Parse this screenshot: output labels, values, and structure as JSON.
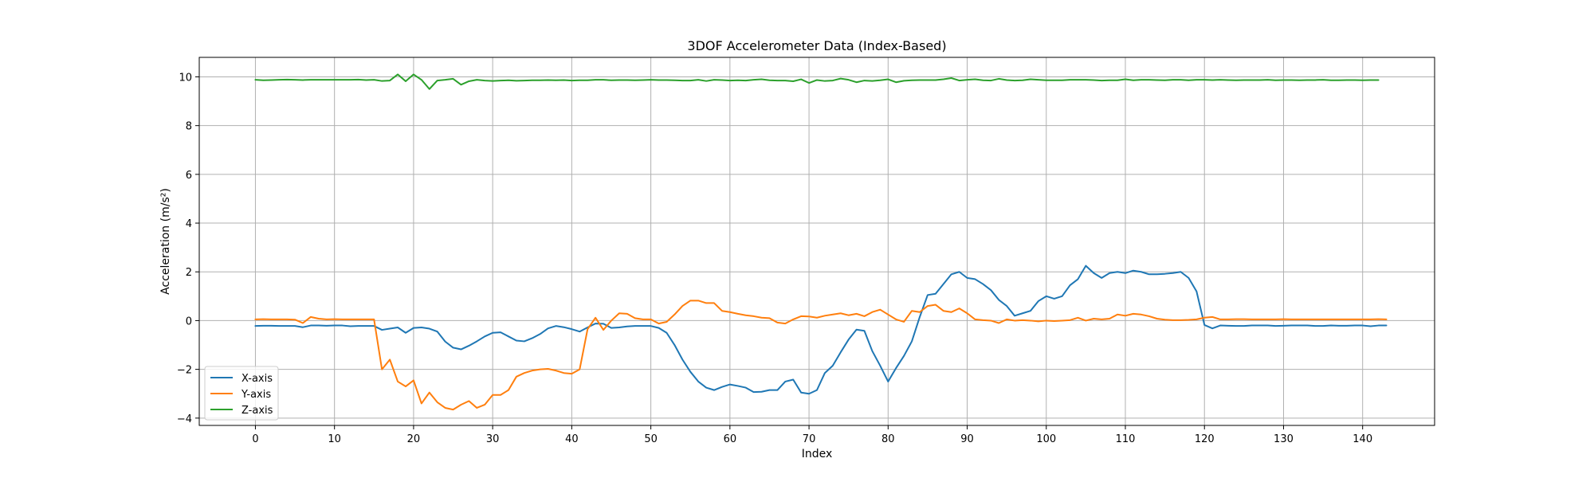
{
  "chart_data": {
    "type": "line",
    "title": "3DOF Accelerometer Data (Index-Based)",
    "xlabel": "Index",
    "ylabel": "Acceleration (m/s²)",
    "xlim": [
      -7.1,
      149.1
    ],
    "ylim": [
      -4.3,
      10.8
    ],
    "x_ticks": [
      0,
      10,
      20,
      30,
      40,
      50,
      60,
      70,
      80,
      90,
      100,
      110,
      120,
      130,
      140
    ],
    "y_ticks": [
      -4,
      -2,
      0,
      2,
      4,
      6,
      8,
      10
    ],
    "grid": true,
    "legend_position": "lower-left",
    "series": [
      {
        "name": "X-axis",
        "color": "#1f77b4",
        "values": [
          -0.22,
          -0.21,
          -0.21,
          -0.22,
          -0.22,
          -0.22,
          -0.27,
          -0.2,
          -0.2,
          -0.21,
          -0.2,
          -0.2,
          -0.23,
          -0.22,
          -0.22,
          -0.22,
          -0.38,
          -0.33,
          -0.28,
          -0.5,
          -0.3,
          -0.28,
          -0.33,
          -0.45,
          -0.86,
          -1.11,
          -1.18,
          -1.03,
          -0.85,
          -0.65,
          -0.5,
          -0.48,
          -0.65,
          -0.82,
          -0.85,
          -0.72,
          -0.55,
          -0.32,
          -0.22,
          -0.27,
          -0.35,
          -0.45,
          -0.28,
          -0.12,
          -0.13,
          -0.3,
          -0.28,
          -0.24,
          -0.22,
          -0.22,
          -0.22,
          -0.3,
          -0.5,
          -1.0,
          -1.6,
          -2.1,
          -2.5,
          -2.75,
          -2.85,
          -2.72,
          -2.62,
          -2.68,
          -2.75,
          -2.93,
          -2.92,
          -2.85,
          -2.85,
          -2.5,
          -2.42,
          -2.95,
          -3.0,
          -2.85,
          -2.15,
          -1.85,
          -1.3,
          -0.78,
          -0.37,
          -0.42,
          -1.25,
          -1.85,
          -2.5,
          -1.95,
          -1.45,
          -0.85,
          0.15,
          1.05,
          1.1,
          1.5,
          1.9,
          2.0,
          1.75,
          1.7,
          1.5,
          1.25,
          0.85,
          0.6,
          0.2,
          0.3,
          0.4,
          0.8,
          1.0,
          0.9,
          1.0,
          1.45,
          1.7,
          2.25,
          1.95,
          1.75,
          1.95,
          2.0,
          1.95,
          2.05,
          2.0,
          1.9,
          1.9,
          1.92,
          1.95,
          2.0,
          1.75,
          1.2,
          -0.18,
          -0.32,
          -0.2,
          -0.21,
          -0.22,
          -0.22,
          -0.2,
          -0.2,
          -0.2,
          -0.22,
          -0.21,
          -0.2,
          -0.2,
          -0.2,
          -0.22,
          -0.22,
          -0.2,
          -0.21,
          -0.21,
          -0.2,
          -0.2,
          -0.23,
          -0.2,
          -0.2
        ]
      },
      {
        "name": "Y-axis",
        "color": "#ff7f0e",
        "values": [
          0.05,
          0.06,
          0.05,
          0.05,
          0.05,
          0.04,
          -0.1,
          0.15,
          0.08,
          0.05,
          0.06,
          0.05,
          0.05,
          0.05,
          0.05,
          0.05,
          -2.0,
          -1.6,
          -2.5,
          -2.7,
          -2.45,
          -3.4,
          -2.95,
          -3.35,
          -3.58,
          -3.65,
          -3.45,
          -3.3,
          -3.58,
          -3.45,
          -3.05,
          -3.05,
          -2.85,
          -2.3,
          -2.15,
          -2.05,
          -2.0,
          -1.98,
          -2.05,
          -2.15,
          -2.18,
          -2.0,
          -0.35,
          0.12,
          -0.38,
          0.0,
          0.3,
          0.28,
          0.1,
          0.05,
          0.05,
          -0.12,
          -0.05,
          0.25,
          0.6,
          0.82,
          0.82,
          0.72,
          0.72,
          0.4,
          0.35,
          0.28,
          0.22,
          0.18,
          0.12,
          0.1,
          -0.08,
          -0.12,
          0.05,
          0.18,
          0.17,
          0.12,
          0.2,
          0.25,
          0.3,
          0.22,
          0.28,
          0.18,
          0.35,
          0.45,
          0.25,
          0.05,
          -0.05,
          0.4,
          0.35,
          0.6,
          0.65,
          0.4,
          0.35,
          0.5,
          0.3,
          0.05,
          0.02,
          0.0,
          -0.1,
          0.05,
          0.0,
          0.02,
          0.0,
          -0.03,
          0.0,
          -0.02,
          0.0,
          0.02,
          0.12,
          0.0,
          0.08,
          0.05,
          0.08,
          0.25,
          0.2,
          0.28,
          0.25,
          0.18,
          0.08,
          0.04,
          0.02,
          0.02,
          0.03,
          0.05,
          0.12,
          0.15,
          0.05,
          0.05,
          0.06,
          0.06,
          0.05,
          0.05,
          0.05,
          0.05,
          0.06,
          0.05,
          0.05,
          0.05,
          0.05,
          0.05,
          0.05,
          0.05,
          0.05,
          0.05,
          0.05,
          0.05,
          0.06,
          0.05
        ]
      },
      {
        "name": "Z-axis",
        "color": "#2ca02c",
        "values": [
          9.88,
          9.86,
          9.87,
          9.88,
          9.89,
          9.88,
          9.87,
          9.88,
          9.88,
          9.88,
          9.88,
          9.88,
          9.88,
          9.89,
          9.87,
          9.88,
          9.83,
          9.85,
          10.1,
          9.82,
          10.1,
          9.88,
          9.5,
          9.85,
          9.88,
          9.92,
          9.68,
          9.82,
          9.88,
          9.85,
          9.83,
          9.85,
          9.86,
          9.84,
          9.85,
          9.86,
          9.86,
          9.87,
          9.86,
          9.87,
          9.85,
          9.86,
          9.86,
          9.88,
          9.88,
          9.86,
          9.87,
          9.87,
          9.86,
          9.87,
          9.88,
          9.87,
          9.87,
          9.86,
          9.85,
          9.85,
          9.88,
          9.83,
          9.88,
          9.87,
          9.85,
          9.86,
          9.85,
          9.88,
          9.9,
          9.86,
          9.85,
          9.85,
          9.82,
          9.9,
          9.75,
          9.87,
          9.83,
          9.85,
          9.93,
          9.88,
          9.78,
          9.85,
          9.83,
          9.86,
          9.9,
          9.78,
          9.84,
          9.86,
          9.87,
          9.87,
          9.87,
          9.9,
          9.95,
          9.85,
          9.88,
          9.9,
          9.86,
          9.85,
          9.92,
          9.87,
          9.85,
          9.86,
          9.9,
          9.88,
          9.86,
          9.86,
          9.86,
          9.88,
          9.88,
          9.88,
          9.87,
          9.85,
          9.86,
          9.86,
          9.9,
          9.86,
          9.88,
          9.88,
          9.87,
          9.86,
          9.88,
          9.88,
          9.86,
          9.88,
          9.88,
          9.87,
          9.88,
          9.87,
          9.86,
          9.87,
          9.87,
          9.87,
          9.88,
          9.86,
          9.87,
          9.87,
          9.86,
          9.87,
          9.87,
          9.88,
          9.86,
          9.86,
          9.87,
          9.87,
          9.86,
          9.87,
          9.87
        ]
      }
    ]
  }
}
